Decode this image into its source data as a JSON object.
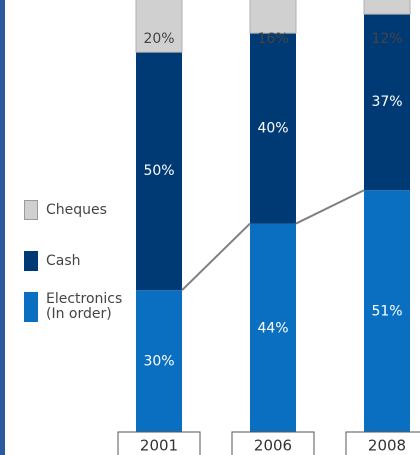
{
  "colors": {
    "cheques": "#d0d0d0",
    "cash": "#003a74",
    "electronics": "#0a6fc0",
    "connector": "#808080",
    "frame": "#2a5aa0"
  },
  "legend": [
    {
      "key": "cheques",
      "label": "Cheques"
    },
    {
      "key": "cash",
      "label": "Cash"
    },
    {
      "key": "electronics",
      "label": "Electronics\n(In order)"
    }
  ],
  "chart_data": {
    "type": "bar",
    "stacked": true,
    "percent": true,
    "categories": [
      "2001",
      "2006",
      "2008"
    ],
    "series": [
      {
        "name": "Electronics (In order)",
        "key": "electronics",
        "values": [
          30,
          44,
          51
        ],
        "labels": [
          "30%",
          "44%",
          "51%"
        ]
      },
      {
        "name": "Cash",
        "key": "cash",
        "values": [
          50,
          40,
          37
        ],
        "labels": [
          "50%",
          "40%",
          "37%"
        ]
      },
      {
        "name": "Cheques",
        "key": "cheques",
        "values": [
          20,
          16,
          12
        ],
        "labels": [
          "20%",
          "16%",
          "12%"
        ]
      }
    ],
    "connector_series": "electronics",
    "legend_position": "left",
    "ylim": [
      0,
      100
    ]
  }
}
